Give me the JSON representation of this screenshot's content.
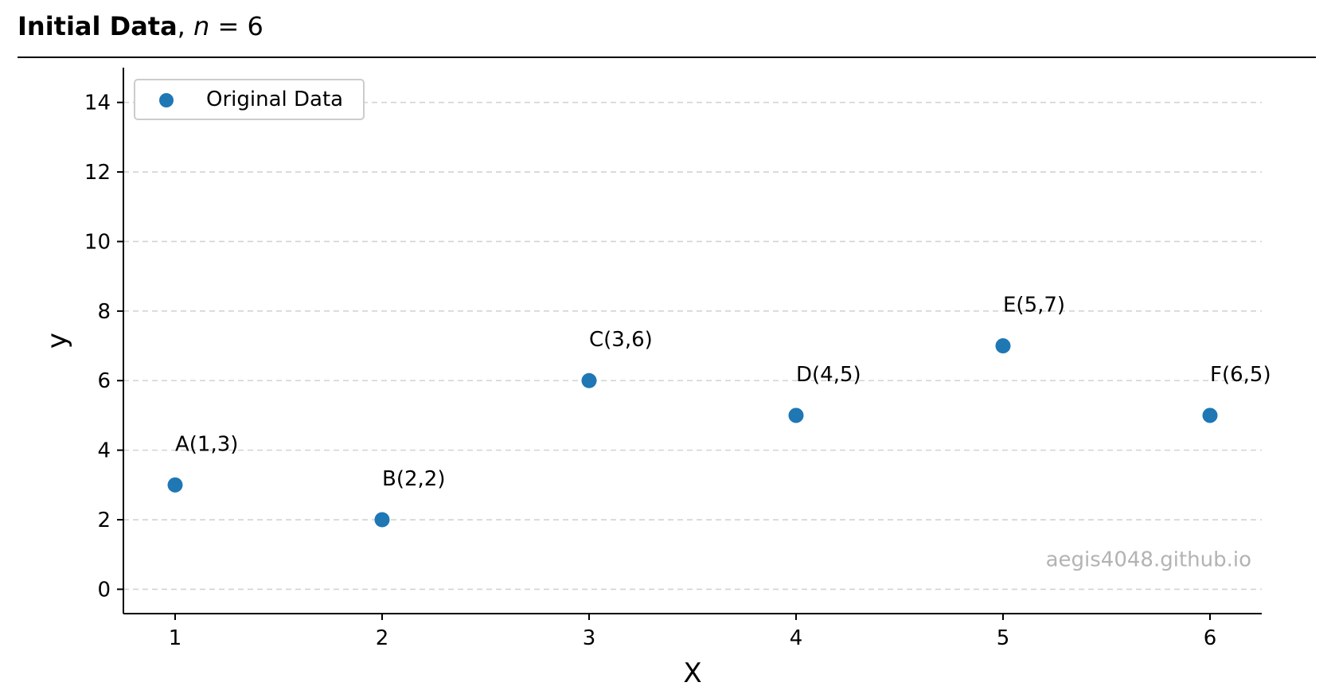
{
  "title": {
    "bold": "Initial Data",
    "rest": ", ",
    "n_var": "n",
    "equals": " = ",
    "n_value": "6"
  },
  "watermark": "aegis4048.github.io",
  "colors": {
    "point": "#1f77b4",
    "grid": "#d3d3d3",
    "watermark": "#b3b3b3",
    "axis": "#000000"
  },
  "chart_data": {
    "type": "scatter",
    "xlabel": "X",
    "ylabel": "y",
    "xlim": [
      0.75,
      6.25
    ],
    "ylim": [
      -0.7,
      15.0
    ],
    "xticks": [
      1,
      2,
      3,
      4,
      5,
      6
    ],
    "yticks": [
      0,
      2,
      4,
      6,
      8,
      10,
      12,
      14
    ],
    "grid": "y-dashed",
    "legend_placement": "top-left",
    "series": [
      {
        "name": "Original Data",
        "points": [
          {
            "label": "A(1,3)",
            "x": 1,
            "y": 3
          },
          {
            "label": "B(2,2)",
            "x": 2,
            "y": 2
          },
          {
            "label": "C(3,6)",
            "x": 3,
            "y": 6
          },
          {
            "label": "D(4,5)",
            "x": 4,
            "y": 5
          },
          {
            "label": "E(5,7)",
            "x": 5,
            "y": 7
          },
          {
            "label": "F(6,5)",
            "x": 6,
            "y": 5
          }
        ]
      }
    ]
  }
}
